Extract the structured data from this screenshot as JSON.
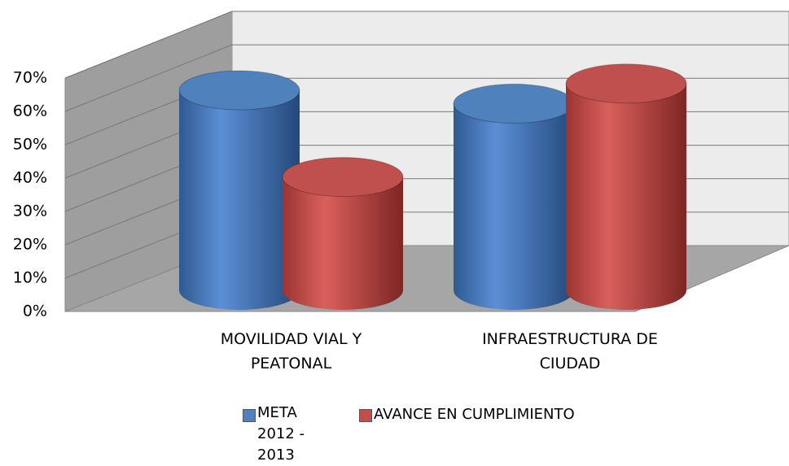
{
  "chart_data": {
    "type": "bar",
    "categories": [
      "MOVILIDAD VIAL Y PEATONAL",
      "INFRAESTRUCTURA DE CIUDAD"
    ],
    "series": [
      {
        "name": "META 2012 - 2013",
        "color": "#4f81bd",
        "values": [
          60,
          56
        ]
      },
      {
        "name": "AVANCE EN CUMPLIMIENTO",
        "color": "#c0504d",
        "values": [
          34,
          62
        ]
      }
    ],
    "ylim": [
      0,
      70
    ],
    "yticks": [
      {
        "value": 0,
        "label": "0%"
      },
      {
        "value": 10,
        "label": "10%"
      },
      {
        "value": 20,
        "label": "20%"
      },
      {
        "value": 30,
        "label": "30%"
      },
      {
        "value": 40,
        "label": "40%"
      },
      {
        "value": 50,
        "label": "50%"
      },
      {
        "value": 60,
        "label": "60%"
      },
      {
        "value": 70,
        "label": "70%"
      }
    ],
    "grid": true
  }
}
